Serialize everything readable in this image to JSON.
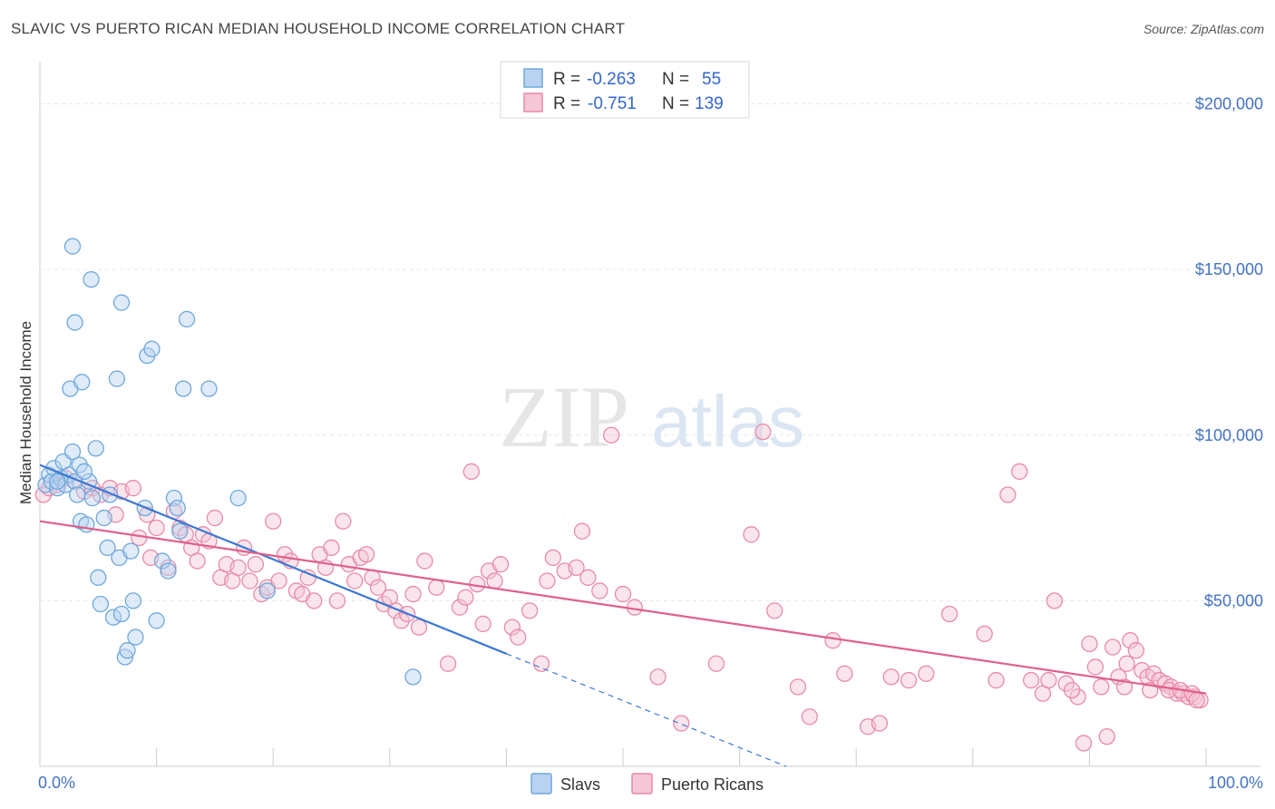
{
  "header": {
    "title": "SLAVIC VS PUERTO RICAN MEDIAN HOUSEHOLD INCOME CORRELATION CHART",
    "source": "Source: ZipAtlas.com"
  },
  "watermark": {
    "zip": "ZIP",
    "atlas": "atlas"
  },
  "colors": {
    "slavs": "#6fa8dc",
    "slavs_fill": "#b8d2f0",
    "slavs_line": "#3a78d4",
    "pr": "#e88aa8",
    "pr_fill": "#f5c6d5",
    "pr_line": "#e0608a"
  },
  "legend": {
    "rows": [
      {
        "r_label": "R =",
        "r_value": "-0.263",
        "n_label": "N =",
        "n_value": "55"
      },
      {
        "r_label": "R =",
        "r_value": "-0.751",
        "n_label": "N =",
        "n_value": "139"
      }
    ]
  },
  "chart_data": {
    "type": "scatter",
    "title": "SLAVIC VS PUERTO RICAN MEDIAN HOUSEHOLD INCOME CORRELATION CHART",
    "xlabel": "",
    "ylabel": "Median Household Income",
    "xlim": [
      0,
      100
    ],
    "ylim": [
      0,
      210000
    ],
    "x_tick_labels": [
      "0.0%",
      "100.0%"
    ],
    "y_ticks": [
      50000,
      100000,
      150000,
      200000
    ],
    "y_tick_labels": [
      "$50,000",
      "$100,000",
      "$150,000",
      "$200,000"
    ],
    "grid": true,
    "legend_position": "top-center",
    "series": [
      {
        "name": "Slavs",
        "r": -0.263,
        "n": 55,
        "trend": {
          "x0": 0,
          "y0": 91000,
          "x1": 40,
          "y1": 34000,
          "dash_to_x": 64,
          "dash_to_y": 0
        },
        "points": [
          [
            0.5,
            85000
          ],
          [
            0.8,
            88000
          ],
          [
            1.0,
            86000
          ],
          [
            1.2,
            90000
          ],
          [
            1.5,
            84000
          ],
          [
            1.8,
            87000
          ],
          [
            2.0,
            92000
          ],
          [
            2.2,
            85000
          ],
          [
            2.5,
            88000
          ],
          [
            2.8,
            95000
          ],
          [
            3.0,
            86000
          ],
          [
            3.2,
            82000
          ],
          [
            3.5,
            74000
          ],
          [
            2.6,
            114000
          ],
          [
            3.0,
            134000
          ],
          [
            3.4,
            91000
          ],
          [
            3.6,
            116000
          ],
          [
            4.0,
            73000
          ],
          [
            4.2,
            86000
          ],
          [
            4.5,
            81000
          ],
          [
            4.8,
            96000
          ],
          [
            4.4,
            147000
          ],
          [
            2.8,
            157000
          ],
          [
            5.0,
            57000
          ],
          [
            5.2,
            49000
          ],
          [
            5.5,
            75000
          ],
          [
            5.8,
            66000
          ],
          [
            6.0,
            82000
          ],
          [
            6.3,
            45000
          ],
          [
            6.6,
            117000
          ],
          [
            6.8,
            63000
          ],
          [
            7.0,
            46000
          ],
          [
            7.3,
            33000
          ],
          [
            7.5,
            35000
          ],
          [
            7.8,
            65000
          ],
          [
            8.0,
            50000
          ],
          [
            8.2,
            39000
          ],
          [
            7.0,
            140000
          ],
          [
            9.0,
            78000
          ],
          [
            9.2,
            124000
          ],
          [
            9.6,
            126000
          ],
          [
            10.0,
            44000
          ],
          [
            10.5,
            62000
          ],
          [
            11.0,
            59000
          ],
          [
            11.5,
            81000
          ],
          [
            11.8,
            78000
          ],
          [
            12.0,
            71000
          ],
          [
            12.3,
            114000
          ],
          [
            12.6,
            135000
          ],
          [
            14.5,
            114000
          ],
          [
            17.0,
            81000
          ],
          [
            19.5,
            53000
          ],
          [
            32.0,
            27000
          ],
          [
            1.5,
            86000
          ],
          [
            3.8,
            89000
          ]
        ]
      },
      {
        "name": "Puerto Ricans",
        "r": -0.751,
        "n": 139,
        "trend": {
          "x0": 0,
          "y0": 74000,
          "x1": 100,
          "y1": 22000
        },
        "points": [
          [
            0.3,
            82000
          ],
          [
            0.8,
            84000
          ],
          [
            1.5,
            85000
          ],
          [
            2.2,
            87000
          ],
          [
            3.0,
            86000
          ],
          [
            3.8,
            83000
          ],
          [
            4.5,
            84000
          ],
          [
            5.2,
            82000
          ],
          [
            6.0,
            84000
          ],
          [
            6.5,
            76000
          ],
          [
            7.0,
            83000
          ],
          [
            8.0,
            84000
          ],
          [
            8.5,
            69000
          ],
          [
            9.2,
            76000
          ],
          [
            9.5,
            63000
          ],
          [
            10.0,
            72000
          ],
          [
            11.0,
            60000
          ],
          [
            11.5,
            77000
          ],
          [
            12.0,
            72000
          ],
          [
            12.5,
            70000
          ],
          [
            13.0,
            66000
          ],
          [
            13.5,
            62000
          ],
          [
            14.0,
            70000
          ],
          [
            14.5,
            68000
          ],
          [
            15.0,
            75000
          ],
          [
            15.5,
            57000
          ],
          [
            16.0,
            61000
          ],
          [
            16.5,
            56000
          ],
          [
            17.0,
            60000
          ],
          [
            17.5,
            66000
          ],
          [
            18.0,
            56000
          ],
          [
            18.5,
            61000
          ],
          [
            19.0,
            52000
          ],
          [
            19.5,
            54000
          ],
          [
            20.0,
            74000
          ],
          [
            20.5,
            56000
          ],
          [
            21.0,
            64000
          ],
          [
            21.5,
            62000
          ],
          [
            22.0,
            53000
          ],
          [
            22.5,
            52000
          ],
          [
            23.0,
            57000
          ],
          [
            23.5,
            50000
          ],
          [
            24.0,
            64000
          ],
          [
            24.5,
            60000
          ],
          [
            25.0,
            66000
          ],
          [
            25.5,
            50000
          ],
          [
            26.0,
            74000
          ],
          [
            26.5,
            61000
          ],
          [
            27.0,
            56000
          ],
          [
            27.5,
            63000
          ],
          [
            28.0,
            64000
          ],
          [
            28.5,
            57000
          ],
          [
            29.0,
            54000
          ],
          [
            29.5,
            49000
          ],
          [
            30.0,
            51000
          ],
          [
            30.5,
            47000
          ],
          [
            31.0,
            44000
          ],
          [
            31.5,
            46000
          ],
          [
            32.0,
            52000
          ],
          [
            32.5,
            42000
          ],
          [
            33.0,
            62000
          ],
          [
            34.0,
            54000
          ],
          [
            35.0,
            31000
          ],
          [
            36.0,
            48000
          ],
          [
            36.5,
            51000
          ],
          [
            37.0,
            89000
          ],
          [
            37.5,
            55000
          ],
          [
            38.0,
            43000
          ],
          [
            38.5,
            59000
          ],
          [
            39.0,
            56000
          ],
          [
            39.5,
            61000
          ],
          [
            40.5,
            42000
          ],
          [
            41.0,
            39000
          ],
          [
            42.0,
            47000
          ],
          [
            43.0,
            31000
          ],
          [
            43.5,
            56000
          ],
          [
            44.0,
            63000
          ],
          [
            45.0,
            59000
          ],
          [
            46.0,
            60000
          ],
          [
            46.5,
            71000
          ],
          [
            47.0,
            57000
          ],
          [
            48.0,
            53000
          ],
          [
            49.0,
            100000
          ],
          [
            50.0,
            52000
          ],
          [
            51.0,
            48000
          ],
          [
            53.0,
            27000
          ],
          [
            55.0,
            13000
          ],
          [
            58.0,
            31000
          ],
          [
            61.0,
            70000
          ],
          [
            62.0,
            101000
          ],
          [
            63.0,
            47000
          ],
          [
            65.0,
            24000
          ],
          [
            66.0,
            15000
          ],
          [
            68.0,
            38000
          ],
          [
            69.0,
            28000
          ],
          [
            71.0,
            12000
          ],
          [
            72.0,
            13000
          ],
          [
            73.0,
            27000
          ],
          [
            74.5,
            26000
          ],
          [
            76.0,
            28000
          ],
          [
            78.0,
            46000
          ],
          [
            81.0,
            40000
          ],
          [
            82.0,
            26000
          ],
          [
            83.0,
            82000
          ],
          [
            84.0,
            89000
          ],
          [
            85.0,
            26000
          ],
          [
            86.0,
            22000
          ],
          [
            87.0,
            50000
          ],
          [
            88.0,
            25000
          ],
          [
            89.0,
            21000
          ],
          [
            89.5,
            7000
          ],
          [
            90.0,
            37000
          ],
          [
            90.5,
            30000
          ],
          [
            91.0,
            24000
          ],
          [
            91.5,
            9000
          ],
          [
            92.0,
            36000
          ],
          [
            92.5,
            27000
          ],
          [
            93.0,
            24000
          ],
          [
            93.5,
            38000
          ],
          [
            94.0,
            35000
          ],
          [
            94.5,
            29000
          ],
          [
            95.0,
            27000
          ],
          [
            95.5,
            28000
          ],
          [
            96.0,
            26000
          ],
          [
            96.5,
            25000
          ],
          [
            97.0,
            24000
          ],
          [
            97.5,
            22000
          ],
          [
            98.0,
            22000
          ],
          [
            98.5,
            21000
          ],
          [
            99.0,
            21000
          ],
          [
            99.5,
            20000
          ],
          [
            86.5,
            26000
          ],
          [
            88.5,
            23000
          ],
          [
            93.2,
            31000
          ],
          [
            95.2,
            23000
          ],
          [
            96.8,
            23000
          ],
          [
            97.8,
            23000
          ],
          [
            98.8,
            22000
          ],
          [
            99.2,
            20000
          ]
        ]
      }
    ]
  },
  "bottom_legend": {
    "items": [
      "Slavs",
      "Puerto Ricans"
    ]
  }
}
